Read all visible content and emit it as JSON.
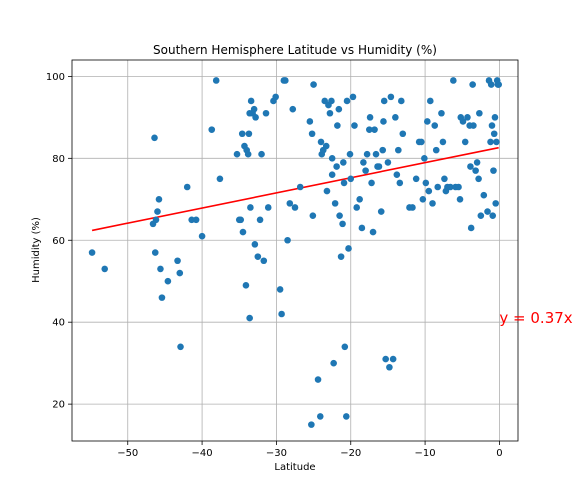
{
  "chart_data": {
    "type": "scatter",
    "title": "Southern Hemisphere Latitude vs Humidity (%)",
    "xlabel": "Latitude",
    "ylabel": "Humidity (%)",
    "xlim": [
      -57.5,
      2.5
    ],
    "ylim": [
      11,
      104
    ],
    "xticks": [
      -50,
      -40,
      -30,
      -20,
      -10,
      0
    ],
    "xtick_labels": [
      "−50",
      "−40",
      "−30",
      "−20",
      "−10",
      "0"
    ],
    "yticks": [
      20,
      40,
      60,
      80,
      100
    ],
    "ytick_labels": [
      "20",
      "40",
      "60",
      "80",
      "100"
    ],
    "grid": true,
    "point_color": "#1f77b4",
    "points": [
      [
        -54.8,
        57
      ],
      [
        -53.1,
        53
      ],
      [
        -46.4,
        85
      ],
      [
        -46.6,
        64
      ],
      [
        -46.2,
        65
      ],
      [
        -46.0,
        67
      ],
      [
        -45.8,
        70
      ],
      [
        -46.3,
        57
      ],
      [
        -45.6,
        53
      ],
      [
        -45.4,
        46
      ],
      [
        -44.6,
        50
      ],
      [
        -43.3,
        55
      ],
      [
        -43.0,
        52
      ],
      [
        -42.9,
        34
      ],
      [
        -42.0,
        73
      ],
      [
        -41.4,
        65
      ],
      [
        -40.8,
        65
      ],
      [
        -40.0,
        61
      ],
      [
        -38.7,
        87
      ],
      [
        -38.1,
        99
      ],
      [
        -37.6,
        75
      ],
      [
        -35.3,
        81
      ],
      [
        -35.0,
        65
      ],
      [
        -34.8,
        65
      ],
      [
        -34.5,
        62
      ],
      [
        -34.6,
        86
      ],
      [
        -34.3,
        83
      ],
      [
        -34.0,
        82
      ],
      [
        -33.8,
        81
      ],
      [
        -33.7,
        86
      ],
      [
        -33.6,
        91
      ],
      [
        -33.4,
        94
      ],
      [
        -33.2,
        91
      ],
      [
        -33.0,
        92
      ],
      [
        -32.8,
        90
      ],
      [
        -34.1,
        49
      ],
      [
        -33.6,
        41
      ],
      [
        -33.5,
        68
      ],
      [
        -32.9,
        59
      ],
      [
        -32.5,
        56
      ],
      [
        -32.2,
        65
      ],
      [
        -31.7,
        55
      ],
      [
        -32.0,
        81
      ],
      [
        -31.4,
        91
      ],
      [
        -31.1,
        68
      ],
      [
        -30.4,
        94
      ],
      [
        -30.1,
        95
      ],
      [
        -29.5,
        48
      ],
      [
        -29.3,
        42
      ],
      [
        -29.0,
        99
      ],
      [
        -28.8,
        99
      ],
      [
        -28.5,
        60
      ],
      [
        -28.2,
        69
      ],
      [
        -27.8,
        92
      ],
      [
        -27.5,
        68
      ],
      [
        -26.8,
        73
      ],
      [
        -25.5,
        89
      ],
      [
        -25.2,
        86
      ],
      [
        -25.0,
        98
      ],
      [
        -25.3,
        15
      ],
      [
        -25.1,
        66
      ],
      [
        -24.4,
        26
      ],
      [
        -24.1,
        17
      ],
      [
        -24.0,
        84
      ],
      [
        -23.9,
        81
      ],
      [
        -23.7,
        82
      ],
      [
        -23.5,
        94
      ],
      [
        -23.3,
        83
      ],
      [
        -23.2,
        72
      ],
      [
        -23.0,
        93
      ],
      [
        -22.8,
        91
      ],
      [
        -22.6,
        94
      ],
      [
        -22.5,
        76
      ],
      [
        -22.5,
        80
      ],
      [
        -22.3,
        30
      ],
      [
        -22.1,
        69
      ],
      [
        -21.9,
        78
      ],
      [
        -21.8,
        88
      ],
      [
        -21.6,
        92
      ],
      [
        -21.5,
        66
      ],
      [
        -21.3,
        56
      ],
      [
        -21.1,
        64
      ],
      [
        -20.9,
        74
      ],
      [
        -21.0,
        79
      ],
      [
        -20.8,
        34
      ],
      [
        -20.6,
        17
      ],
      [
        -20.5,
        94
      ],
      [
        -20.3,
        58
      ],
      [
        -20.1,
        81
      ],
      [
        -20.0,
        75
      ],
      [
        -19.7,
        95
      ],
      [
        -19.5,
        88
      ],
      [
        -19.2,
        68
      ],
      [
        -18.8,
        70
      ],
      [
        -18.5,
        63
      ],
      [
        -18.3,
        79
      ],
      [
        -18.0,
        77
      ],
      [
        -17.8,
        81
      ],
      [
        -17.5,
        87
      ],
      [
        -17.4,
        90
      ],
      [
        -17.2,
        74
      ],
      [
        -17.0,
        62
      ],
      [
        -16.8,
        87
      ],
      [
        -16.6,
        81
      ],
      [
        -16.4,
        78
      ],
      [
        -16.2,
        78
      ],
      [
        -15.9,
        67
      ],
      [
        -15.7,
        82
      ],
      [
        -15.6,
        89
      ],
      [
        -15.5,
        94
      ],
      [
        -15.3,
        31
      ],
      [
        -15.0,
        79
      ],
      [
        -14.8,
        29
      ],
      [
        -14.6,
        95
      ],
      [
        -14.3,
        31
      ],
      [
        -14.0,
        90
      ],
      [
        -13.8,
        76
      ],
      [
        -13.6,
        82
      ],
      [
        -13.4,
        74
      ],
      [
        -13.2,
        94
      ],
      [
        -13.0,
        86
      ],
      [
        -12.1,
        68
      ],
      [
        -11.7,
        68
      ],
      [
        -11.2,
        75
      ],
      [
        -10.8,
        84
      ],
      [
        -10.5,
        84
      ],
      [
        -10.3,
        70
      ],
      [
        -10.1,
        80
      ],
      [
        -9.9,
        74
      ],
      [
        -9.7,
        89
      ],
      [
        -9.5,
        72
      ],
      [
        -9.3,
        94
      ],
      [
        -9.0,
        69
      ],
      [
        -8.7,
        88
      ],
      [
        -8.5,
        82
      ],
      [
        -8.3,
        73
      ],
      [
        -7.8,
        91
      ],
      [
        -7.6,
        84
      ],
      [
        -7.4,
        75
      ],
      [
        -7.2,
        72
      ],
      [
        -7.0,
        73
      ],
      [
        -6.6,
        73
      ],
      [
        -6.2,
        99
      ],
      [
        -5.9,
        73
      ],
      [
        -5.5,
        73
      ],
      [
        -5.3,
        70
      ],
      [
        -5.2,
        90
      ],
      [
        -4.9,
        89
      ],
      [
        -4.6,
        84
      ],
      [
        -4.3,
        90
      ],
      [
        -4.0,
        88
      ],
      [
        -3.9,
        78
      ],
      [
        -3.8,
        63
      ],
      [
        -3.6,
        98
      ],
      [
        -3.5,
        88
      ],
      [
        -3.2,
        77
      ],
      [
        -3.0,
        79
      ],
      [
        -2.8,
        75
      ],
      [
        -2.7,
        91
      ],
      [
        -2.5,
        66
      ],
      [
        -2.1,
        71
      ],
      [
        -1.6,
        67
      ],
      [
        -1.4,
        99
      ],
      [
        -1.2,
        84
      ],
      [
        -1.1,
        98
      ],
      [
        -1.0,
        88
      ],
      [
        -0.9,
        66
      ],
      [
        -0.8,
        77
      ],
      [
        -0.7,
        86
      ],
      [
        -0.6,
        90
      ],
      [
        -0.5,
        69
      ],
      [
        -0.4,
        84
      ],
      [
        -0.3,
        99
      ],
      [
        -0.2,
        98
      ],
      [
        -0.1,
        98
      ]
    ],
    "regression": {
      "color": "#ff0000",
      "x_start": -54.8,
      "y_start": 62.4,
      "x_end": -0.1,
      "y_end": 82.6
    },
    "annotation": {
      "text": "y = 0.37x",
      "x": 0,
      "y": 40
    }
  }
}
